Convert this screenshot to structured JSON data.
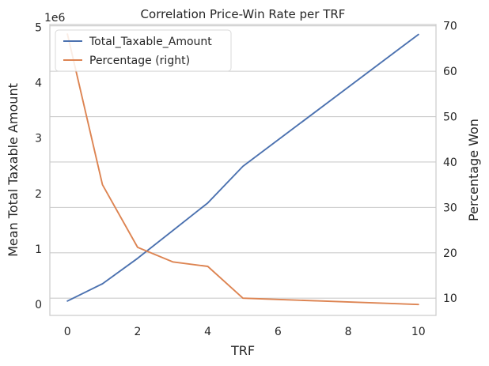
{
  "chart_data": {
    "type": "line",
    "title": "Correlation Price-Win Rate per TRF",
    "xlabel": "TRF",
    "ylabel_left": "Mean Total Taxable Amount",
    "ylabel_right": "Percentage Won",
    "y_left_offset_text": "1e6",
    "x": [
      0,
      1,
      2,
      3,
      4,
      5,
      10
    ],
    "xlim": [
      -0.5,
      10.5
    ],
    "ylim_left": [
      -0.2,
      5.05
    ],
    "ylim_right": [
      6.2,
      70.3
    ],
    "x_ticks": [
      0,
      2,
      4,
      6,
      8,
      10
    ],
    "y_left_ticks": [
      0,
      1,
      2,
      3,
      4,
      5
    ],
    "y_right_ticks": [
      10,
      20,
      30,
      40,
      50,
      60,
      70
    ],
    "grid": "horizontal-right-axis",
    "legend_position": "top-left",
    "series": [
      {
        "name": "Total_Taxable_Amount",
        "axis": "left",
        "color": "#4c72b0",
        "values": [
          0.06,
          0.37,
          0.83,
          1.33,
          1.83,
          2.49,
          4.87
        ]
      },
      {
        "name": "Percentage (right)",
        "axis": "right",
        "color": "#dd8452",
        "values": [
          68.2,
          35.0,
          21.2,
          18.0,
          17.0,
          10.0,
          8.6
        ]
      }
    ]
  }
}
